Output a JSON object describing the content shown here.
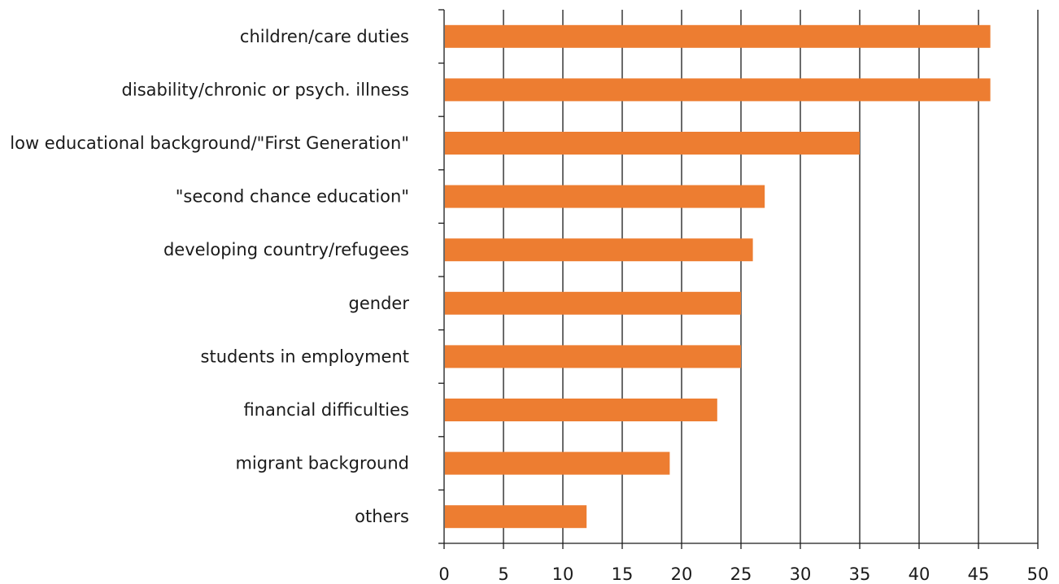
{
  "chart_data": {
    "type": "bar",
    "orientation": "horizontal",
    "title": "",
    "xlabel": "",
    "ylabel": "",
    "categories": [
      "children/care duties",
      "disability/chronic or psych. illness",
      "low educational background/\"First Generation\"",
      "\"second chance education\"",
      "developing country/refugees",
      "gender",
      "students in employment",
      "financial difficulties",
      "migrant background",
      "others"
    ],
    "values": [
      46,
      46,
      35,
      27,
      26,
      25,
      25,
      23,
      19,
      12
    ],
    "xlim": [
      0,
      50
    ],
    "xticks": [
      0,
      5,
      10,
      15,
      20,
      25,
      30,
      35,
      40,
      45,
      50
    ],
    "grid": "vertical",
    "legend": "none",
    "bar_color": "#ed7d31"
  }
}
